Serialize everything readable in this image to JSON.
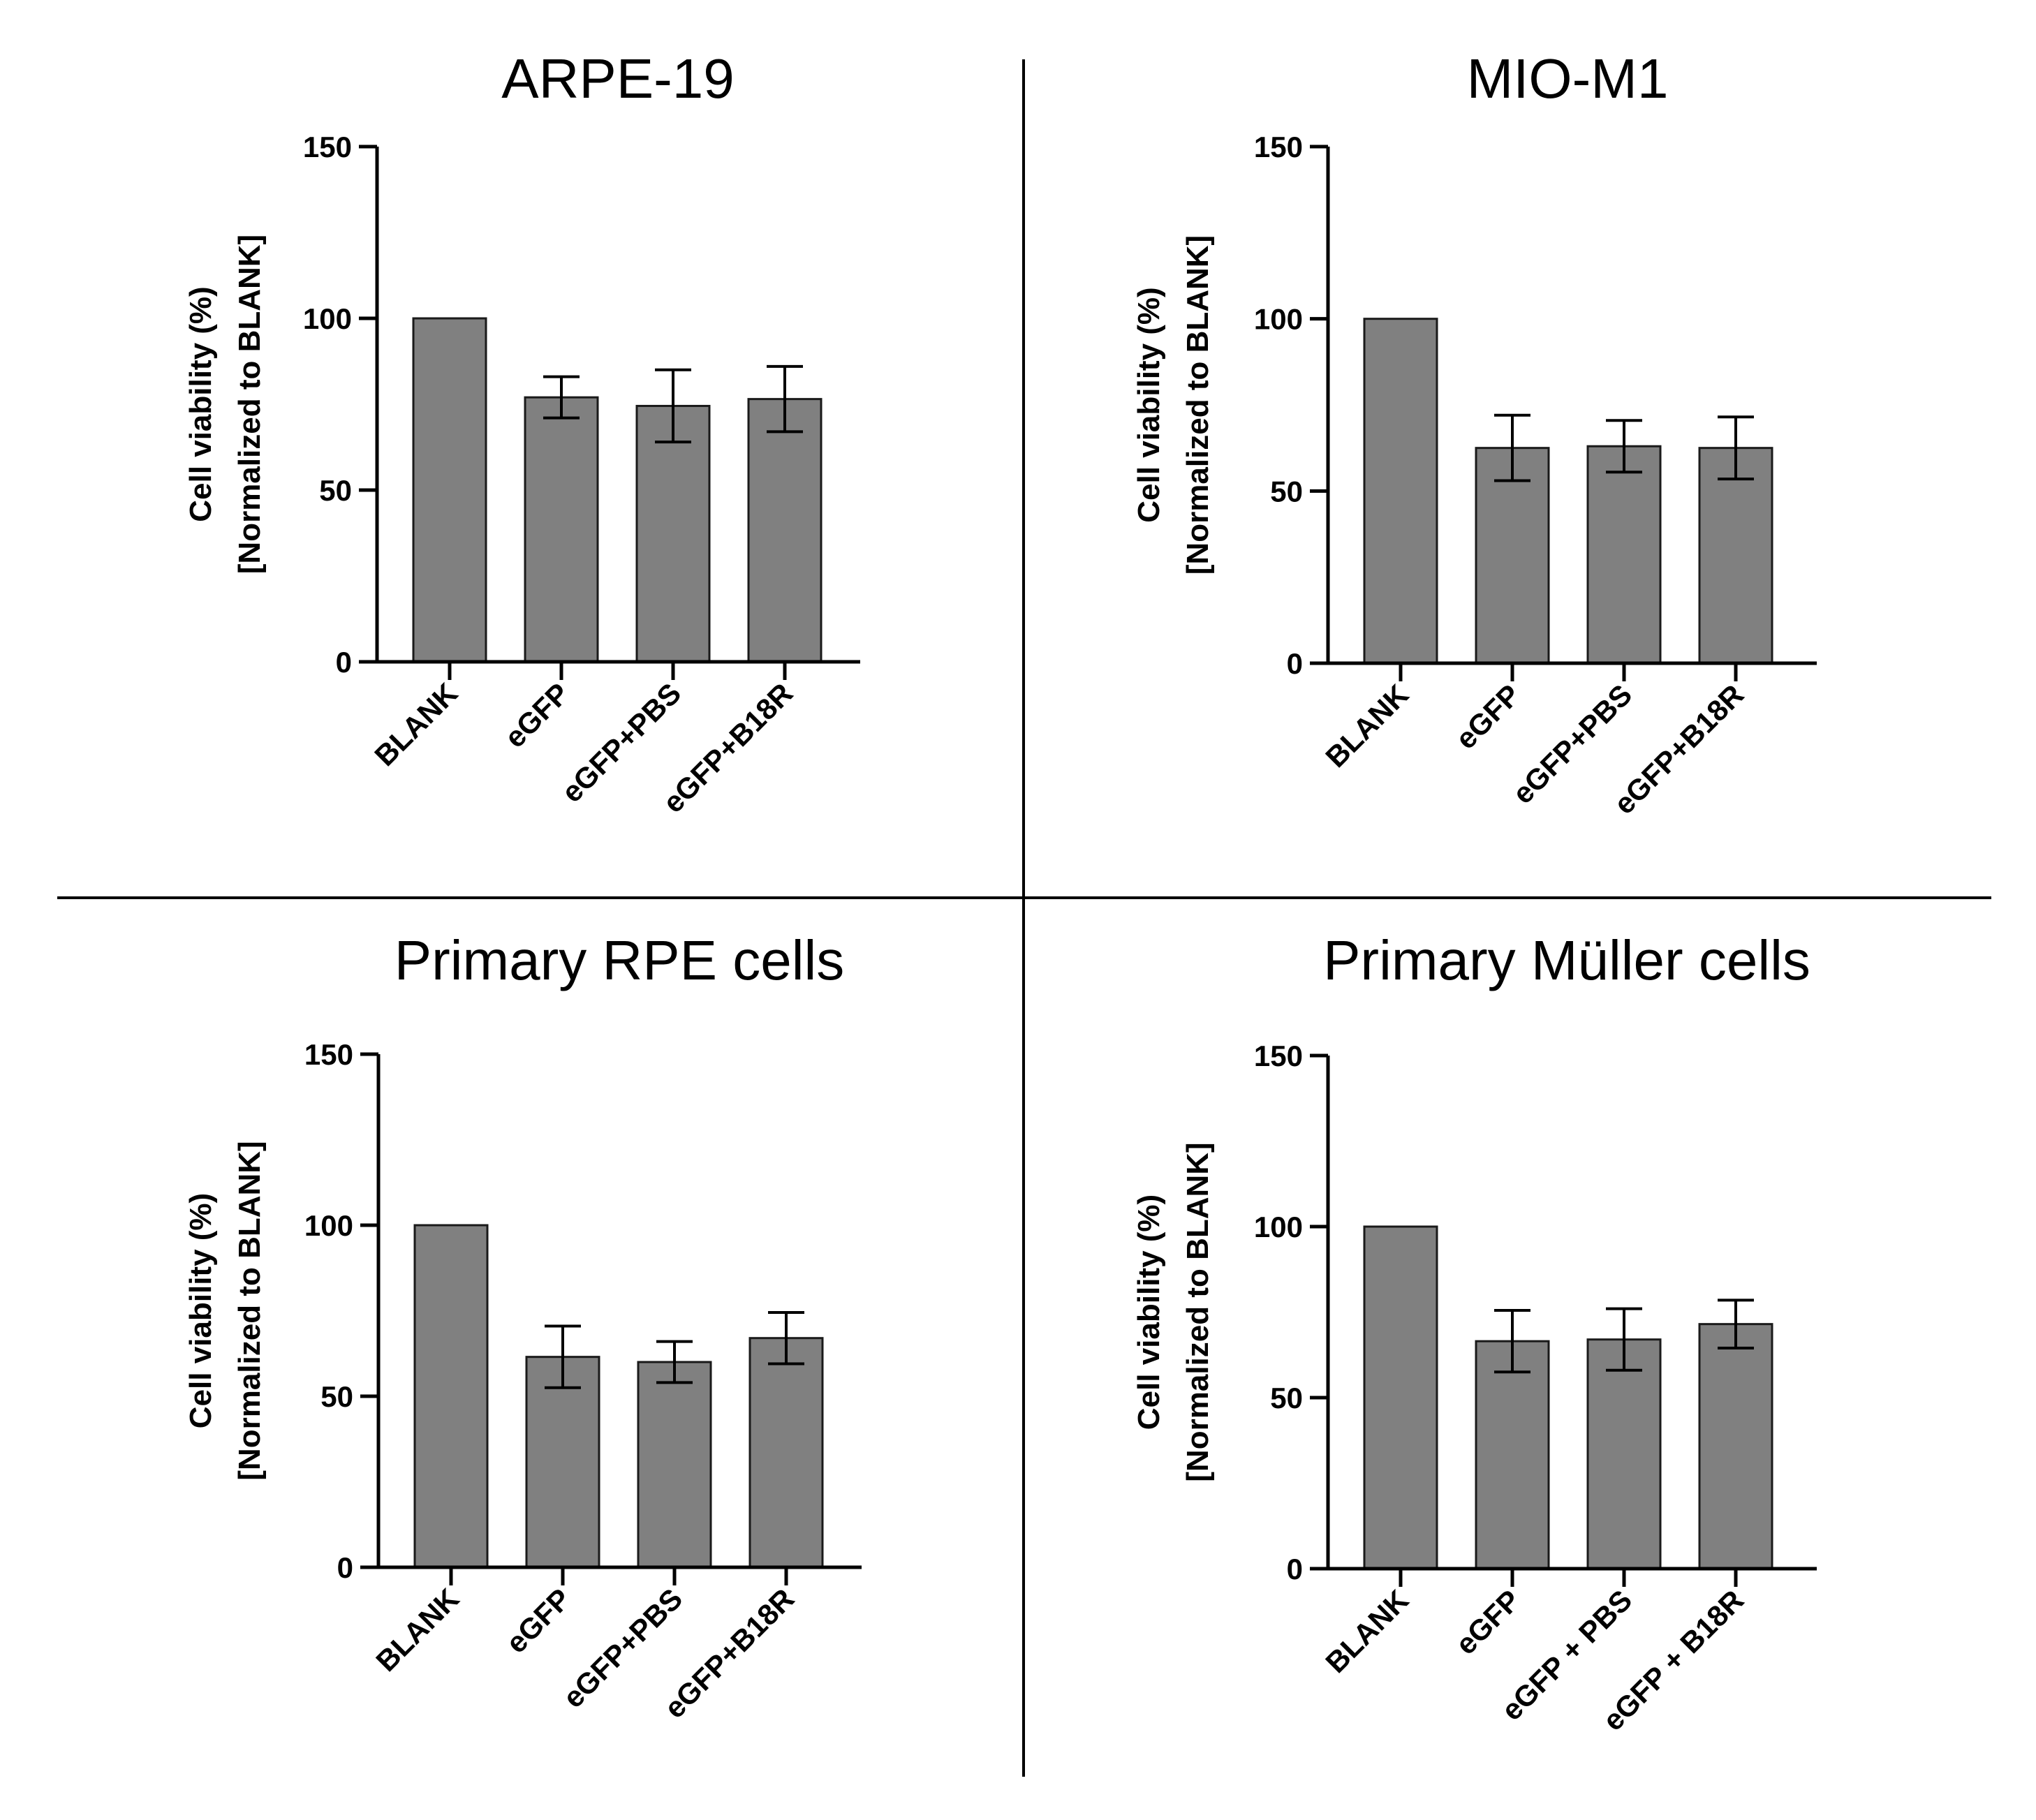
{
  "colors": {
    "bar_fill": "#808080",
    "bar_stroke": "#1a1a1a",
    "axis": "#000000",
    "divider": "#000000"
  },
  "chart_data": [
    {
      "type": "bar",
      "title": "ARPE-19",
      "ylabel": "Cell viability (%)",
      "ylabel2": "[Normalized to BLANK]",
      "xlabel": "",
      "ylim": [
        0,
        150
      ],
      "yticks": [
        "0",
        "50",
        "100",
        "150"
      ],
      "categories": [
        "BLANK",
        "eGFP",
        "eGFP+PBS",
        "eGFP+B18R"
      ],
      "values": [
        100,
        77,
        74.5,
        76.5
      ],
      "error": [
        0,
        6,
        10.5,
        9.5
      ]
    },
    {
      "type": "bar",
      "title": "MIO-M1",
      "ylabel": "Cell viability (%)",
      "ylabel2": "[Normalized to BLANK]",
      "xlabel": "",
      "ylim": [
        0,
        150
      ],
      "yticks": [
        "0",
        "50",
        "100",
        "150"
      ],
      "categories": [
        "BLANK",
        "eGFP",
        "eGFP+PBS",
        "eGFP+B18R"
      ],
      "values": [
        100,
        62.5,
        63,
        62.5
      ],
      "error": [
        0,
        9.5,
        7.5,
        9
      ]
    },
    {
      "type": "bar",
      "title": "Primary RPE cells",
      "ylabel": "Cell viability (%)",
      "ylabel2": "[Normalized to BLANK]",
      "xlabel": "",
      "ylim": [
        0,
        150
      ],
      "yticks": [
        "0",
        "50",
        "100",
        "150"
      ],
      "categories": [
        "BLANK",
        "eGFP",
        "eGFP+PBS",
        "eGFP+B18R"
      ],
      "values": [
        100,
        61.5,
        60,
        67
      ],
      "error": [
        0,
        9,
        6,
        7.5
      ]
    },
    {
      "type": "bar",
      "title": "Primary Müller cells",
      "ylabel": "Cell viability (%)",
      "ylabel2": "[Normalized to BLANK]",
      "xlabel": "",
      "ylim": [
        0,
        150
      ],
      "yticks": [
        "0",
        "50",
        "100",
        "150"
      ],
      "categories": [
        "BLANK",
        "eGFP",
        "eGFP + PBS",
        "eGFP + B18R"
      ],
      "values": [
        100,
        66.5,
        67,
        71.5
      ],
      "error": [
        0,
        9,
        9,
        7
      ]
    }
  ]
}
